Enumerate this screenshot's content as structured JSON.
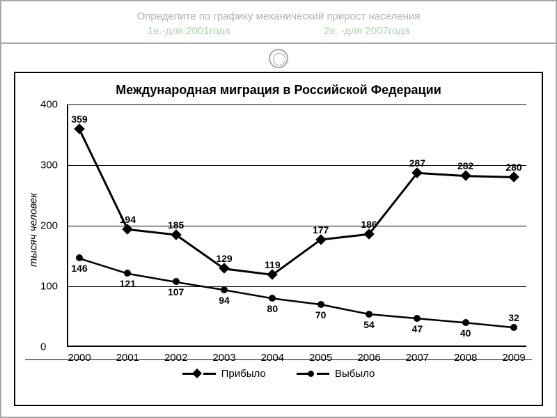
{
  "header": {
    "title": "Определите по графику механический прирост населения",
    "subtitle_left": "1в.-для 2001года",
    "subtitle_right": "2в. -для 2007года"
  },
  "chart": {
    "type": "line",
    "title": "Международная миграция в Российской Федерации",
    "ylabel": "тысяч человек",
    "ylim": [
      0,
      400
    ],
    "ytick_step": 100,
    "yticks": [
      0,
      100,
      200,
      300,
      400
    ],
    "categories": [
      "2000",
      "2001",
      "2002",
      "2003",
      "2004",
      "2005",
      "2006",
      "2007",
      "2008",
      "2009"
    ],
    "series": [
      {
        "name": "Прибыло",
        "marker": "diamond",
        "line_width": 3,
        "color": "#000000",
        "values": [
          359,
          194,
          185,
          129,
          119,
          177,
          186,
          287,
          282,
          280
        ],
        "label_pos": [
          "above",
          "above",
          "above",
          "above",
          "above",
          "above",
          "above",
          "above",
          "above",
          "above"
        ]
      },
      {
        "name": "Выбыло",
        "marker": "circle",
        "line_width": 2.5,
        "color": "#000000",
        "values": [
          146,
          121,
          107,
          94,
          80,
          70,
          54,
          47,
          40,
          32
        ],
        "label_pos": [
          "below",
          "below",
          "below",
          "below",
          "below",
          "below",
          "below",
          "below",
          "below",
          "above"
        ]
      }
    ],
    "background_color": "#ffffff",
    "grid_color": "#000000",
    "axis_fontsize": 15,
    "label_fontsize": 14
  },
  "legend": {
    "arrived": "Прибыло",
    "departed": "Выбыло"
  }
}
